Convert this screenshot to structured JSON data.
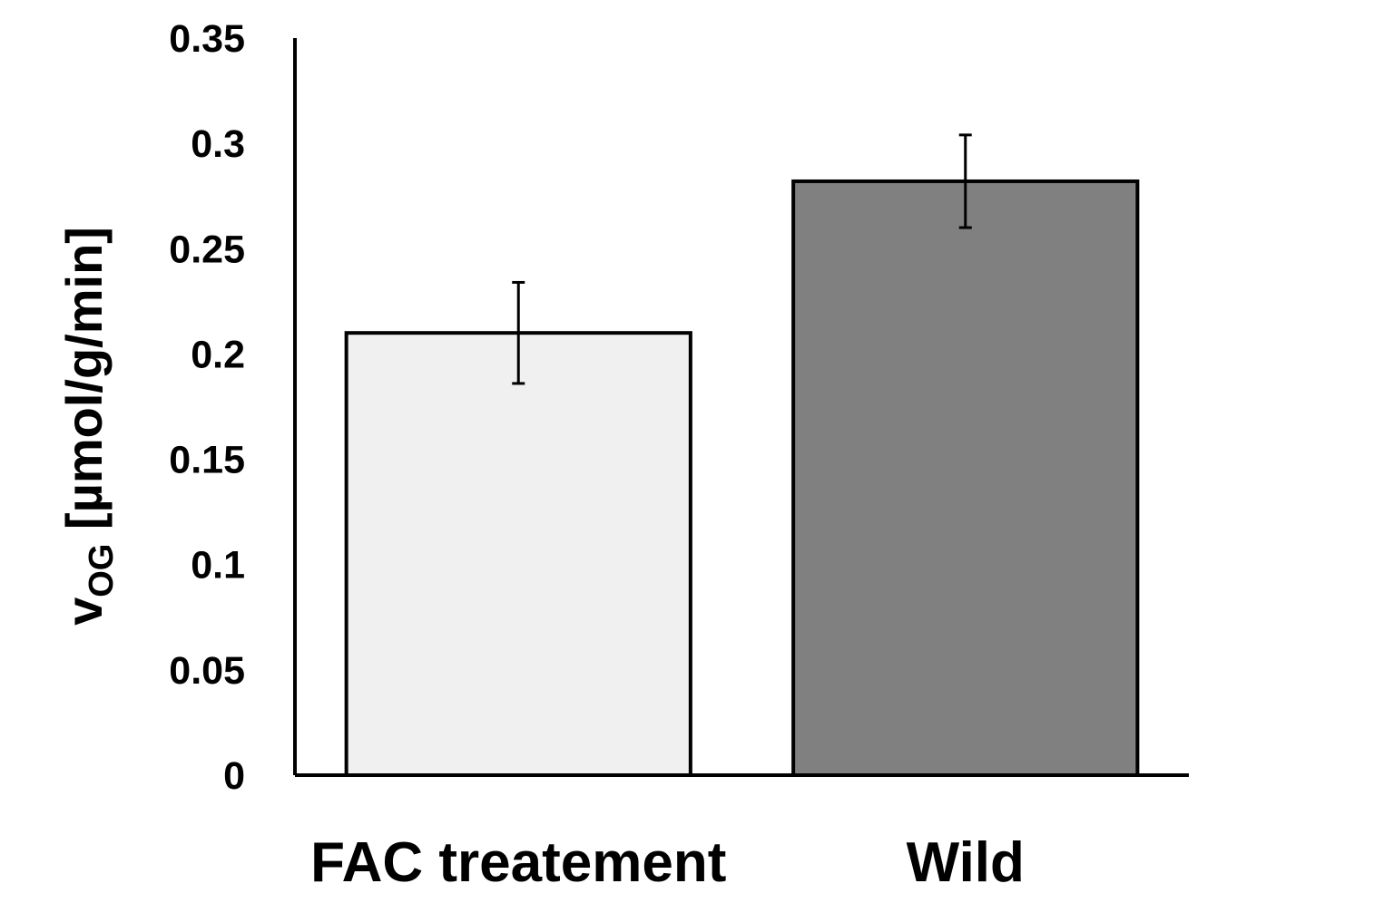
{
  "chart_data": {
    "type": "bar",
    "categories": [
      "FAC treatement",
      "Wild"
    ],
    "values": [
      0.21,
      0.282
    ],
    "errors": [
      0.024,
      0.022
    ],
    "ylim": [
      0,
      0.35
    ],
    "y_ticks": [
      0,
      0.05,
      0.1,
      0.15,
      0.2,
      0.25,
      0.3,
      0.35
    ],
    "y_tick_labels": [
      "0",
      "0.05",
      "0.1",
      "0.15",
      "0.2",
      "0.25",
      "0.3",
      "0.35"
    ],
    "ylabel": {
      "main": "v",
      "subscript": "OG",
      "units": " [µmol/g/min]"
    },
    "xlabel": "",
    "title": "",
    "grid": false,
    "legend": "none",
    "bar_colors": [
      "#f0f0f0",
      "#808080"
    ],
    "edge_color": "#000000"
  }
}
